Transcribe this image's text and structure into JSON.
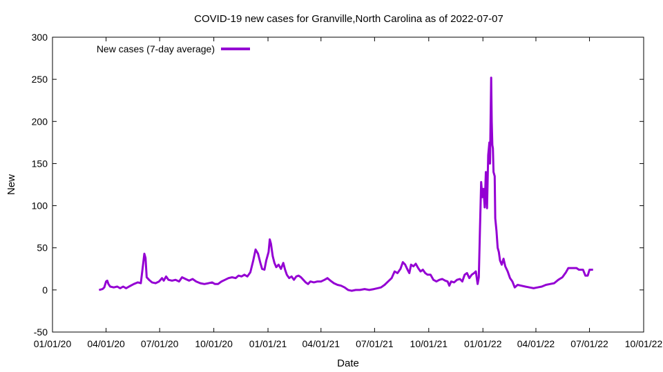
{
  "chart_data": {
    "type": "line",
    "title": "COVID-19 new cases for Granville,North Carolina as of 2022-07-07",
    "xlabel": "Date",
    "ylabel": "New",
    "ylim": [
      -50,
      300
    ],
    "yticks": [
      -50,
      0,
      50,
      100,
      150,
      200,
      250,
      300
    ],
    "xlim": [
      "2020-01-01",
      "2022-10-01"
    ],
    "xticks": [
      {
        "date": "2020-01-01",
        "label": "01/01/20"
      },
      {
        "date": "2020-04-01",
        "label": "04/01/20"
      },
      {
        "date": "2020-07-01",
        "label": "07/01/20"
      },
      {
        "date": "2020-10-01",
        "label": "10/01/20"
      },
      {
        "date": "2021-01-01",
        "label": "01/01/21"
      },
      {
        "date": "2021-04-01",
        "label": "04/01/21"
      },
      {
        "date": "2021-07-01",
        "label": "07/01/21"
      },
      {
        "date": "2021-10-01",
        "label": "10/01/21"
      },
      {
        "date": "2022-01-01",
        "label": "01/01/22"
      },
      {
        "date": "2022-04-01",
        "label": "04/01/22"
      },
      {
        "date": "2022-07-01",
        "label": "07/01/22"
      },
      {
        "date": "2022-10-01",
        "label": "10/01/22"
      }
    ],
    "grid": false,
    "legend_position": "top-left",
    "series": [
      {
        "name": "New cases (7-day average)",
        "color": "#9400d3",
        "points": [
          [
            "2020-03-20",
            0
          ],
          [
            "2020-03-26",
            1
          ],
          [
            "2020-03-29",
            3
          ],
          [
            "2020-04-01",
            10
          ],
          [
            "2020-04-03",
            11
          ],
          [
            "2020-04-05",
            7
          ],
          [
            "2020-04-08",
            4
          ],
          [
            "2020-04-14",
            3
          ],
          [
            "2020-04-20",
            4
          ],
          [
            "2020-04-25",
            2
          ],
          [
            "2020-04-30",
            4
          ],
          [
            "2020-05-05",
            2
          ],
          [
            "2020-05-10",
            4
          ],
          [
            "2020-05-18",
            7
          ],
          [
            "2020-05-25",
            9
          ],
          [
            "2020-05-30",
            8
          ],
          [
            "2020-06-02",
            25
          ],
          [
            "2020-06-05",
            43
          ],
          [
            "2020-06-07",
            38
          ],
          [
            "2020-06-09",
            15
          ],
          [
            "2020-06-13",
            12
          ],
          [
            "2020-06-18",
            9
          ],
          [
            "2020-06-24",
            8
          ],
          [
            "2020-06-30",
            10
          ],
          [
            "2020-07-05",
            14
          ],
          [
            "2020-07-08",
            11
          ],
          [
            "2020-07-12",
            16
          ],
          [
            "2020-07-16",
            12
          ],
          [
            "2020-07-22",
            11
          ],
          [
            "2020-07-28",
            12
          ],
          [
            "2020-08-03",
            10
          ],
          [
            "2020-08-08",
            15
          ],
          [
            "2020-08-14",
            13
          ],
          [
            "2020-08-20",
            11
          ],
          [
            "2020-08-26",
            13
          ],
          [
            "2020-09-01",
            10
          ],
          [
            "2020-09-08",
            8
          ],
          [
            "2020-09-15",
            7
          ],
          [
            "2020-09-22",
            8
          ],
          [
            "2020-09-28",
            9
          ],
          [
            "2020-10-03",
            7
          ],
          [
            "2020-10-08",
            7
          ],
          [
            "2020-10-14",
            10
          ],
          [
            "2020-10-20",
            12
          ],
          [
            "2020-10-26",
            14
          ],
          [
            "2020-11-01",
            15
          ],
          [
            "2020-11-07",
            14
          ],
          [
            "2020-11-12",
            17
          ],
          [
            "2020-11-17",
            16
          ],
          [
            "2020-11-22",
            18
          ],
          [
            "2020-11-27",
            16
          ],
          [
            "2020-12-02",
            21
          ],
          [
            "2020-12-07",
            35
          ],
          [
            "2020-12-11",
            48
          ],
          [
            "2020-12-15",
            43
          ],
          [
            "2020-12-19",
            32
          ],
          [
            "2020-12-22",
            25
          ],
          [
            "2020-12-26",
            24
          ],
          [
            "2020-12-29",
            35
          ],
          [
            "2021-01-02",
            45
          ],
          [
            "2021-01-04",
            60
          ],
          [
            "2021-01-06",
            55
          ],
          [
            "2021-01-09",
            40
          ],
          [
            "2021-01-12",
            32
          ],
          [
            "2021-01-15",
            27
          ],
          [
            "2021-01-19",
            30
          ],
          [
            "2021-01-23",
            25
          ],
          [
            "2021-01-27",
            32
          ],
          [
            "2021-01-30",
            24
          ],
          [
            "2021-02-02",
            18
          ],
          [
            "2021-02-06",
            14
          ],
          [
            "2021-02-10",
            16
          ],
          [
            "2021-02-14",
            12
          ],
          [
            "2021-02-18",
            16
          ],
          [
            "2021-02-22",
            17
          ],
          [
            "2021-02-26",
            15
          ],
          [
            "2021-03-02",
            12
          ],
          [
            "2021-03-06",
            9
          ],
          [
            "2021-03-10",
            7
          ],
          [
            "2021-03-14",
            10
          ],
          [
            "2021-03-20",
            9
          ],
          [
            "2021-03-26",
            10
          ],
          [
            "2021-04-01",
            10
          ],
          [
            "2021-04-07",
            12
          ],
          [
            "2021-04-12",
            14
          ],
          [
            "2021-04-17",
            11
          ],
          [
            "2021-04-23",
            8
          ],
          [
            "2021-04-29",
            6
          ],
          [
            "2021-05-05",
            5
          ],
          [
            "2021-05-11",
            3
          ],
          [
            "2021-05-17",
            0
          ],
          [
            "2021-05-23",
            -1
          ],
          [
            "2021-05-30",
            0
          ],
          [
            "2021-06-06",
            0
          ],
          [
            "2021-06-14",
            1
          ],
          [
            "2021-06-22",
            0
          ],
          [
            "2021-06-30",
            1
          ],
          [
            "2021-07-06",
            2
          ],
          [
            "2021-07-12",
            3
          ],
          [
            "2021-07-18",
            6
          ],
          [
            "2021-07-24",
            10
          ],
          [
            "2021-07-30",
            14
          ],
          [
            "2021-08-04",
            22
          ],
          [
            "2021-08-09",
            20
          ],
          [
            "2021-08-14",
            25
          ],
          [
            "2021-08-18",
            33
          ],
          [
            "2021-08-22",
            30
          ],
          [
            "2021-08-26",
            24
          ],
          [
            "2021-08-29",
            20
          ],
          [
            "2021-09-01",
            30
          ],
          [
            "2021-09-05",
            28
          ],
          [
            "2021-09-09",
            31
          ],
          [
            "2021-09-13",
            26
          ],
          [
            "2021-09-17",
            22
          ],
          [
            "2021-09-21",
            24
          ],
          [
            "2021-09-25",
            20
          ],
          [
            "2021-09-29",
            18
          ],
          [
            "2021-10-04",
            18
          ],
          [
            "2021-10-09",
            12
          ],
          [
            "2021-10-14",
            10
          ],
          [
            "2021-10-19",
            12
          ],
          [
            "2021-10-24",
            13
          ],
          [
            "2021-10-29",
            11
          ],
          [
            "2021-11-02",
            10
          ],
          [
            "2021-11-05",
            5
          ],
          [
            "2021-11-08",
            10
          ],
          [
            "2021-11-13",
            9
          ],
          [
            "2021-11-18",
            12
          ],
          [
            "2021-11-23",
            13
          ],
          [
            "2021-11-27",
            10
          ],
          [
            "2021-12-01",
            18
          ],
          [
            "2021-12-05",
            20
          ],
          [
            "2021-12-09",
            14
          ],
          [
            "2021-12-13",
            18
          ],
          [
            "2021-12-17",
            20
          ],
          [
            "2021-12-20",
            22
          ],
          [
            "2021-12-23",
            7
          ],
          [
            "2021-12-25",
            15
          ],
          [
            "2021-12-27",
            73
          ],
          [
            "2021-12-29",
            128
          ],
          [
            "2021-12-31",
            110
          ],
          [
            "2022-01-02",
            120
          ],
          [
            "2022-01-04",
            98
          ],
          [
            "2022-01-06",
            140
          ],
          [
            "2022-01-08",
            97
          ],
          [
            "2022-01-10",
            160
          ],
          [
            "2022-01-12",
            175
          ],
          [
            "2022-01-13",
            150
          ],
          [
            "2022-01-15",
            252
          ],
          [
            "2022-01-16",
            200
          ],
          [
            "2022-01-17",
            172
          ],
          [
            "2022-01-18",
            168
          ],
          [
            "2022-01-19",
            140
          ],
          [
            "2022-01-21",
            135
          ],
          [
            "2022-01-22",
            85
          ],
          [
            "2022-01-24",
            70
          ],
          [
            "2022-01-26",
            50
          ],
          [
            "2022-01-28",
            45
          ],
          [
            "2022-01-30",
            35
          ],
          [
            "2022-02-02",
            30
          ],
          [
            "2022-02-05",
            37
          ],
          [
            "2022-02-08",
            28
          ],
          [
            "2022-02-12",
            22
          ],
          [
            "2022-02-16",
            14
          ],
          [
            "2022-02-20",
            10
          ],
          [
            "2022-02-24",
            3
          ],
          [
            "2022-03-01",
            6
          ],
          [
            "2022-03-07",
            5
          ],
          [
            "2022-03-14",
            4
          ],
          [
            "2022-03-21",
            3
          ],
          [
            "2022-03-28",
            2
          ],
          [
            "2022-04-04",
            3
          ],
          [
            "2022-04-11",
            4
          ],
          [
            "2022-04-18",
            6
          ],
          [
            "2022-04-25",
            7
          ],
          [
            "2022-05-02",
            8
          ],
          [
            "2022-05-09",
            12
          ],
          [
            "2022-05-16",
            15
          ],
          [
            "2022-05-22",
            21
          ],
          [
            "2022-05-26",
            26
          ],
          [
            "2022-06-02",
            26
          ],
          [
            "2022-06-09",
            26
          ],
          [
            "2022-06-13",
            24
          ],
          [
            "2022-06-20",
            24
          ],
          [
            "2022-06-24",
            17
          ],
          [
            "2022-06-28",
            17
          ],
          [
            "2022-07-01",
            24
          ],
          [
            "2022-07-07",
            24
          ]
        ]
      }
    ]
  }
}
